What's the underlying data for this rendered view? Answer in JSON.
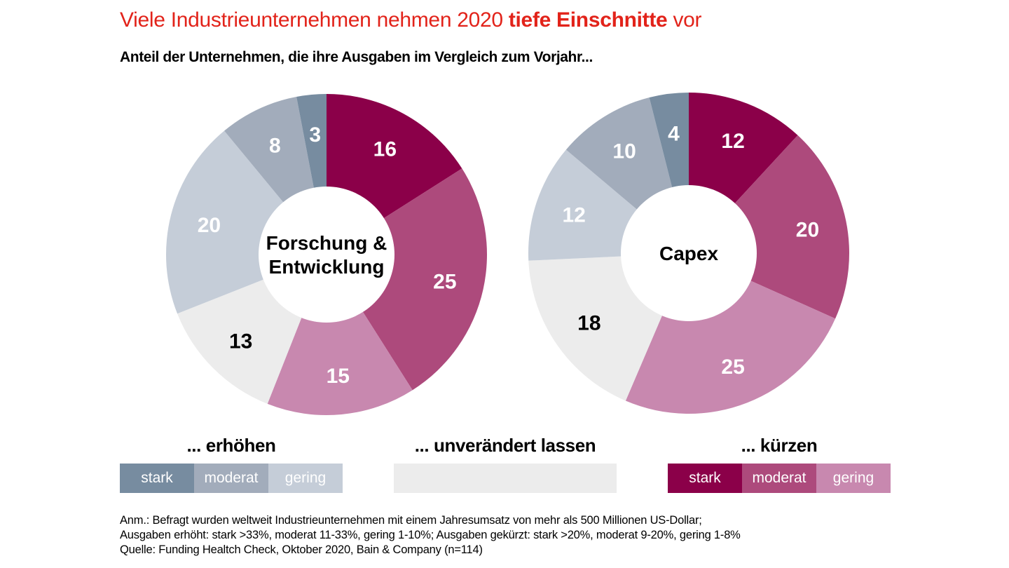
{
  "header": {
    "title_part1": "Viele Industrieunternehmen nehmen 2020 ",
    "title_bold": "tiefe Einschnitte",
    "title_part2": " vor",
    "subtitle": "Anteil der Unternehmen, die ihre Ausgaben im Vergleich zum Vorjahr..."
  },
  "colors": {
    "title": "#E2231A",
    "kuerzen_stark": "#8B0049",
    "kuerzen_moderat": "#AD4A7C",
    "kuerzen_gering": "#C888AF",
    "unveraendert": "#ECECEC",
    "erhoehen_gering": "#C5CDD8",
    "erhoehen_moderat": "#A2ACBB",
    "erhoehen_stark": "#778CA0"
  },
  "chart_data": [
    {
      "type": "pie",
      "variant": "donut",
      "center_label": [
        "Forschung &",
        "Entwicklung"
      ],
      "start": "12 o'clock, clockwise",
      "categories": [
        "kürzen stark",
        "kürzen moderat",
        "kürzen gering",
        "unverändert lassen",
        "erhöhen gering",
        "erhöhen moderat",
        "erhöhen stark"
      ],
      "values": [
        16,
        25,
        15,
        13,
        20,
        8,
        3
      ],
      "label_colors": [
        "#ffffff",
        "#ffffff",
        "#ffffff",
        "#000000",
        "#ffffff",
        "#ffffff",
        "#ffffff"
      ],
      "unit": "%"
    },
    {
      "type": "pie",
      "variant": "donut",
      "center_label": [
        "Capex"
      ],
      "start": "12 o'clock, clockwise",
      "categories": [
        "kürzen stark",
        "kürzen moderat",
        "kürzen gering",
        "unverändert lassen",
        "erhöhen gering",
        "erhöhen moderat",
        "erhöhen stark"
      ],
      "values": [
        12,
        20,
        25,
        18,
        12,
        10,
        4
      ],
      "label_colors": [
        "#ffffff",
        "#ffffff",
        "#ffffff",
        "#000000",
        "#ffffff",
        "#ffffff",
        "#ffffff"
      ],
      "unit": "%"
    }
  ],
  "legend": {
    "erhoehen": {
      "heading": "... erhöhen",
      "cells": [
        "stark",
        "moderat",
        "gering"
      ]
    },
    "unveraendert": {
      "heading": "... unverändert lassen"
    },
    "kuerzen": {
      "heading": "... kürzen",
      "cells": [
        "stark",
        "moderat",
        "gering"
      ]
    }
  },
  "footnote": {
    "line1": "Anm.: Befragt wurden weltweit Industrieunternehmen mit einem Jahresumsatz von mehr als 500 Millionen US-Dollar;",
    "line2": "Ausgaben erhöht: stark >33%, moderat 11-33%, gering 1-10%; Ausgaben gekürzt: stark >20%, moderat 9-20%, gering 1-8%",
    "line3": "Quelle: Funding Healtch Check, Oktober 2020, Bain & Company (n=114)"
  }
}
